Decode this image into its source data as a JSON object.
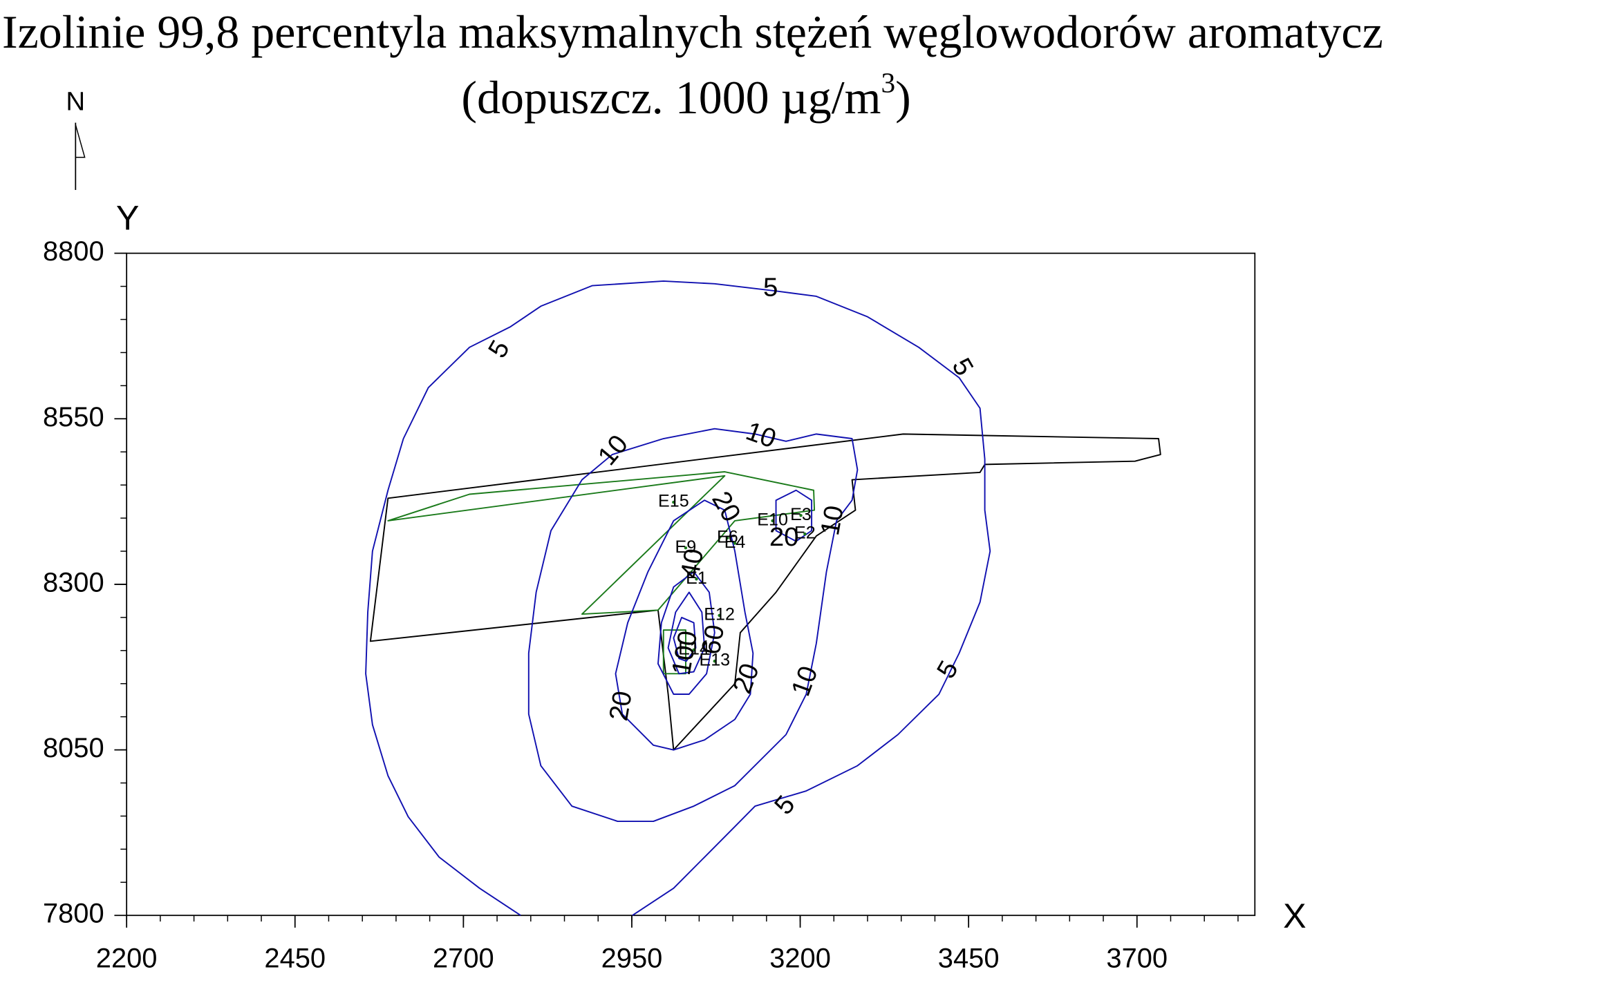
{
  "chart_data": {
    "type": "contour",
    "title": "Izolinie 99,8 percentyla maksymalnych stężeń węglowodorów aromatycz",
    "subtitle": [
      "(dopuszcz. 1000 µg/m",
      "3",
      ")"
    ],
    "north": "N",
    "x_label": "X",
    "y_label": "Y",
    "xlim": [
      2200,
      3875
    ],
    "ylim": [
      7800,
      8800
    ],
    "xticks": [
      2200,
      2450,
      2700,
      2950,
      3200,
      3450,
      3700
    ],
    "yticks": [
      7800,
      8050,
      8300,
      8550,
      8800
    ],
    "minor_step": 50,
    "contours": [
      {
        "color": "#1010b0",
        "closed": false,
        "x": [
          2785,
          2724,
          2664,
          2618,
          2588,
          2565,
          2555,
          2558,
          2565,
          2588,
          2611,
          2648,
          2709,
          2770,
          2815,
          2891,
          2997,
          3073,
          3164,
          3224,
          3300,
          3376,
          3436,
          3467,
          3474,
          3474,
          3482,
          3467,
          3436,
          3406,
          3345,
          3285,
          3209,
          3133,
          3103,
          3058,
          3012,
          2951
        ],
        "y": [
          7800,
          7841,
          7888,
          7949,
          8011,
          8088,
          8165,
          8258,
          8350,
          8442,
          8520,
          8597,
          8658,
          8689,
          8720,
          8751,
          8758,
          8754,
          8743,
          8735,
          8704,
          8658,
          8612,
          8566,
          8489,
          8412,
          8350,
          8273,
          8196,
          8134,
          8073,
          8026,
          7988,
          7965,
          7934,
          7888,
          7841,
          7800
        ]
      },
      {
        "color": "#1010b0",
        "closed": true,
        "x": [
          2929,
          2861,
          2815,
          2797,
          2797,
          2808,
          2830,
          2876,
          2921,
          2997,
          3073,
          3133,
          3179,
          3224,
          3277,
          3285,
          3277,
          3254,
          3239,
          3224,
          3209,
          3179,
          3103,
          3042,
          2982
        ],
        "y": [
          7942,
          7965,
          8026,
          8104,
          8196,
          8288,
          8381,
          8458,
          8496,
          8520,
          8535,
          8527,
          8516,
          8527,
          8520,
          8473,
          8427,
          8396,
          8319,
          8211,
          8134,
          8073,
          7996,
          7965,
          7942
        ]
      },
      {
        "color": "#1010b0",
        "closed": true,
        "x": [
          2982,
          2936,
          2926,
          2944,
          2974,
          3012,
          3058,
          3088,
          3103,
          3118,
          3130,
          3126,
          3103,
          3058,
          3012
        ],
        "y": [
          8057,
          8104,
          8165,
          8242,
          8319,
          8396,
          8427,
          8412,
          8350,
          8258,
          8196,
          8134,
          8096,
          8065,
          8050
        ]
      },
      {
        "color": "#1010b0",
        "closed": true,
        "x": [
          3164,
          3194,
          3217,
          3217,
          3194,
          3164
        ],
        "y": [
          8427,
          8442,
          8427,
          8381,
          8365,
          8381
        ]
      },
      {
        "color": "#1010b0",
        "closed": true,
        "x": [
          3012,
          2989,
          2994,
          3012,
          3042,
          3065,
          3073,
          3061,
          3035
        ],
        "y": [
          8134,
          8180,
          8242,
          8296,
          8319,
          8288,
          8227,
          8165,
          8134
        ]
      },
      {
        "color": "#1010b0",
        "closed": true,
        "x": [
          3020,
          3004,
          3015,
          3035,
          3054,
          3058,
          3042
        ],
        "y": [
          8165,
          8204,
          8258,
          8288,
          8258,
          8204,
          8168
        ]
      },
      {
        "color": "#1010b0",
        "closed": true,
        "x": [
          3020,
          3012,
          3024,
          3042,
          3045,
          3031
        ],
        "y": [
          8188,
          8219,
          8250,
          8242,
          8204,
          8184
        ]
      }
    ],
    "outlines": [
      {
        "color": "#000000",
        "closed": true,
        "x": [
          2562,
          2588,
          3353,
          3732,
          3735,
          3697,
          3474,
          3467,
          3277,
          3282,
          3224,
          3164,
          3111,
          3103,
          3012,
          3004,
          2989
        ],
        "y": [
          8214,
          8430,
          8527,
          8520,
          8496,
          8486,
          8481,
          8469,
          8458,
          8412,
          8373,
          8288,
          8227,
          8150,
          8050,
          8134,
          8261
        ]
      },
      {
        "color": "#1a7a1a",
        "closed": true,
        "x": [
          2588,
          2709,
          3088,
          3220,
          3221,
          3103,
          2989,
          2876,
          3088
        ],
        "y": [
          8396,
          8436,
          8470,
          8442,
          8412,
          8396,
          8261,
          8255,
          8464
        ]
      },
      {
        "color": "#1a7a1a",
        "closed": true,
        "x": [
          2997,
          3030,
          3030,
          2997
        ],
        "y": [
          8231,
          8231,
          8165,
          8165
        ]
      }
    ],
    "contour_labels": [
      {
        "value": 5,
        "x": 3156,
        "y": 8746
      },
      {
        "value": 5,
        "x": 2755,
        "y": 8654
      },
      {
        "value": 5,
        "x": 3439,
        "y": 8627
      },
      {
        "value": 5,
        "x": 3421,
        "y": 8170
      },
      {
        "value": 5,
        "x": 3179,
        "y": 7965
      },
      {
        "value": 10,
        "x": 2924,
        "y": 8501
      },
      {
        "value": 10,
        "x": 3141,
        "y": 8523
      },
      {
        "value": 10,
        "x": 3250,
        "y": 8396
      },
      {
        "value": 10,
        "x": 3209,
        "y": 8153
      },
      {
        "value": 20,
        "x": 3088,
        "y": 8416
      },
      {
        "value": 20,
        "x": 3176,
        "y": 8369
      },
      {
        "value": 20,
        "x": 2936,
        "y": 8116
      },
      {
        "value": 20,
        "x": 3122,
        "y": 8157
      },
      {
        "value": 40,
        "x": 3042,
        "y": 8331
      },
      {
        "value": 60,
        "x": 3073,
        "y": 8216
      },
      {
        "value": 100,
        "x": 3031,
        "y": 8196
      }
    ],
    "sources": [
      {
        "label": "E15",
        "x": 3012,
        "y": 8424
      },
      {
        "label": "E9",
        "x": 3030,
        "y": 8355
      },
      {
        "label": "E6",
        "x": 3092,
        "y": 8370
      },
      {
        "label": "E4",
        "x": 3103,
        "y": 8362
      },
      {
        "label": "E10",
        "x": 3159,
        "y": 8396
      },
      {
        "label": "E3",
        "x": 3201,
        "y": 8404
      },
      {
        "label": "E2",
        "x": 3207,
        "y": 8376
      },
      {
        "label": "E1",
        "x": 3046,
        "y": 8308
      },
      {
        "label": "E12",
        "x": 3080,
        "y": 8253
      },
      {
        "label": "E13",
        "x": 3073,
        "y": 8184
      },
      {
        "label": "E14",
        "x": 3042,
        "y": 8201
      }
    ]
  }
}
